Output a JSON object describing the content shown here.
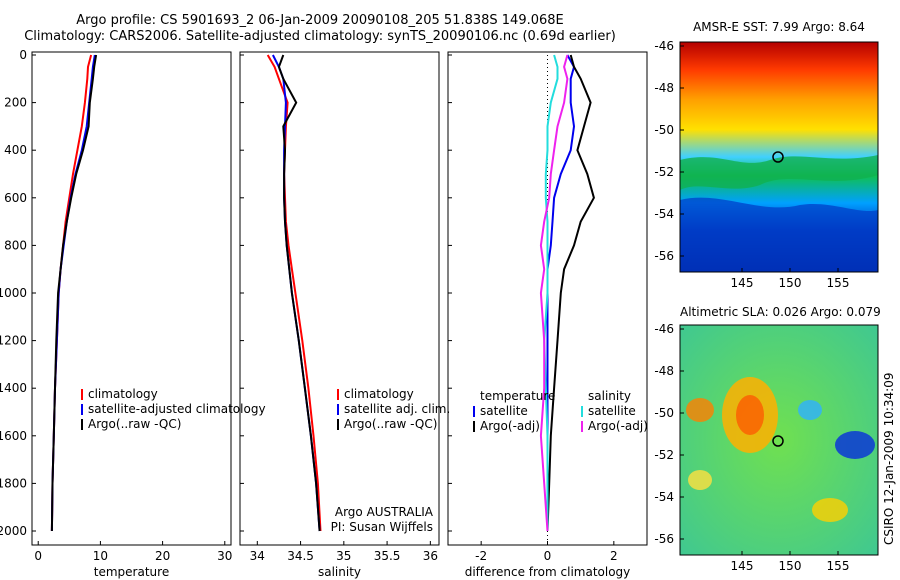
{
  "header": {
    "line1": "Argo profile: CS 5901693_2 06-Jan-2009 20090108_205 51.838S 149.068E",
    "line2": "Climatology: CARS2006. Satellite-adjusted climatology: synTS_20090106.nc (0.69d earlier)"
  },
  "credit": "CSIRO 12-Jan-2009 10:34:09",
  "colors": {
    "climatology": "#ff0000",
    "satellite": "#0000ee",
    "argo": "#000000",
    "sal_sat": "#22dddd",
    "sal_argo": "#ee22ee"
  },
  "depth_ticks": [
    "0",
    "200",
    "400",
    "600",
    "800",
    "1000",
    "1200",
    "1400",
    "1600",
    "1800",
    "2000"
  ],
  "chart_data": [
    {
      "type": "line",
      "xlabel": "temperature",
      "xlim": [
        -1,
        31
      ],
      "ylim": [
        2000,
        0
      ],
      "xticks": [
        "0",
        "10",
        "20",
        "30"
      ],
      "y": [
        0,
        50,
        100,
        200,
        300,
        400,
        500,
        600,
        700,
        800,
        900,
        1000,
        1200,
        1400,
        1600,
        1800,
        2000
      ],
      "series": [
        {
          "name": "climatology",
          "values": [
            8.5,
            8.0,
            7.9,
            7.5,
            7.0,
            6.3,
            5.6,
            5.0,
            4.4,
            4.0,
            3.6,
            3.3,
            3.0,
            2.7,
            2.5,
            2.3,
            2.2
          ]
        },
        {
          "name": "satellite-adjusted climatology",
          "values": [
            9.1,
            8.8,
            8.6,
            8.2,
            7.8,
            7.0,
            6.0,
            5.2,
            4.6,
            4.1,
            3.6,
            3.3,
            3.0,
            2.7,
            2.5,
            2.3,
            2.2
          ]
        },
        {
          "name": "Argo(..raw -QC)",
          "values": [
            9.3,
            9.0,
            8.8,
            8.3,
            8.1,
            7.2,
            6.1,
            5.3,
            4.6,
            4.0,
            3.6,
            3.2,
            2.9,
            2.7,
            2.5,
            2.3,
            2.2
          ]
        }
      ],
      "legend": "bottom-right"
    },
    {
      "type": "line",
      "xlabel": "salinity",
      "xlim": [
        33.8,
        36.1
      ],
      "ylim": [
        2000,
        0
      ],
      "xticks": [
        "34",
        "34.5",
        "35",
        "35.5",
        "36"
      ],
      "y": [
        0,
        50,
        100,
        200,
        300,
        400,
        500,
        600,
        700,
        800,
        900,
        1000,
        1200,
        1400,
        1600,
        1800,
        2000
      ],
      "series": [
        {
          "name": "climatology",
          "values": [
            34.12,
            34.2,
            34.25,
            34.35,
            34.33,
            34.32,
            34.31,
            34.32,
            34.33,
            34.36,
            34.4,
            34.44,
            34.52,
            34.59,
            34.65,
            34.7,
            34.73
          ]
        },
        {
          "name": "satellite adj. clim.",
          "values": [
            34.18,
            34.25,
            34.3,
            34.33,
            34.32,
            34.31,
            34.31,
            34.31,
            34.32,
            34.34,
            34.37,
            34.4,
            34.48,
            34.55,
            34.62,
            34.68,
            34.72
          ]
        },
        {
          "name": "Argo(..raw -QC)",
          "values": [
            34.3,
            34.25,
            34.3,
            34.45,
            34.3,
            34.32,
            34.31,
            34.31,
            34.32,
            34.34,
            34.37,
            34.4,
            34.48,
            34.55,
            34.62,
            34.68,
            34.72
          ]
        }
      ],
      "annotations": [
        "Argo AUSTRALIA",
        "PI: Susan Wijffels"
      ],
      "legend": "bottom-right"
    },
    {
      "type": "line",
      "xlabel": "difference from climatology",
      "xlim": [
        -3,
        3
      ],
      "ylim": [
        2000,
        0
      ],
      "xticks": [
        "-2",
        "0",
        "2"
      ],
      "y": [
        0,
        50,
        100,
        200,
        300,
        400,
        500,
        600,
        700,
        800,
        900,
        1000,
        1200,
        1400,
        1600,
        1800,
        2000
      ],
      "series": [
        {
          "name": "temperature satellite",
          "values": [
            0.6,
            0.8,
            0.7,
            0.7,
            0.8,
            0.7,
            0.4,
            0.2,
            0.15,
            0.1,
            0.0,
            0.0,
            0.0,
            0.0,
            0.0,
            0.0,
            0.0
          ]
        },
        {
          "name": "temperature Argo(-adj)",
          "values": [
            0.7,
            0.8,
            1.0,
            1.3,
            1.1,
            0.9,
            1.2,
            1.4,
            1.0,
            0.8,
            0.5,
            0.4,
            0.3,
            0.2,
            0.1,
            0.05,
            0.0
          ]
        },
        {
          "name": "salinity satellite",
          "values": [
            0.2,
            0.3,
            0.3,
            0.1,
            0.0,
            0.0,
            -0.05,
            -0.05,
            0.0,
            0.0,
            0.0,
            0.0,
            -0.1,
            -0.05,
            0.0,
            0.0,
            0.0
          ]
        },
        {
          "name": "salinity Argo(-adj)",
          "values": [
            0.6,
            0.5,
            0.6,
            0.5,
            0.3,
            0.2,
            0.1,
            0.05,
            -0.1,
            -0.2,
            -0.1,
            -0.2,
            -0.1,
            -0.1,
            -0.2,
            -0.1,
            0.0
          ]
        }
      ],
      "legend_headers": [
        "temperature",
        "salinity"
      ],
      "legend_labels": [
        "satellite",
        "Argo(-adj)"
      ],
      "legend": "bottom"
    }
  ],
  "maps": [
    {
      "title": "AMSR-E SST: 7.99 Argo: 8.64",
      "yticks": [
        "-46",
        "-48",
        "-50",
        "-52",
        "-54",
        "-56"
      ],
      "xticks": [
        "145",
        "150",
        "155"
      ]
    },
    {
      "title": "Altimetric SLA: 0.026 Argo: 0.079",
      "yticks": [
        "-46",
        "-48",
        "-50",
        "-52",
        "-54",
        "-56"
      ],
      "xticks": [
        "145",
        "150",
        "155"
      ]
    }
  ]
}
